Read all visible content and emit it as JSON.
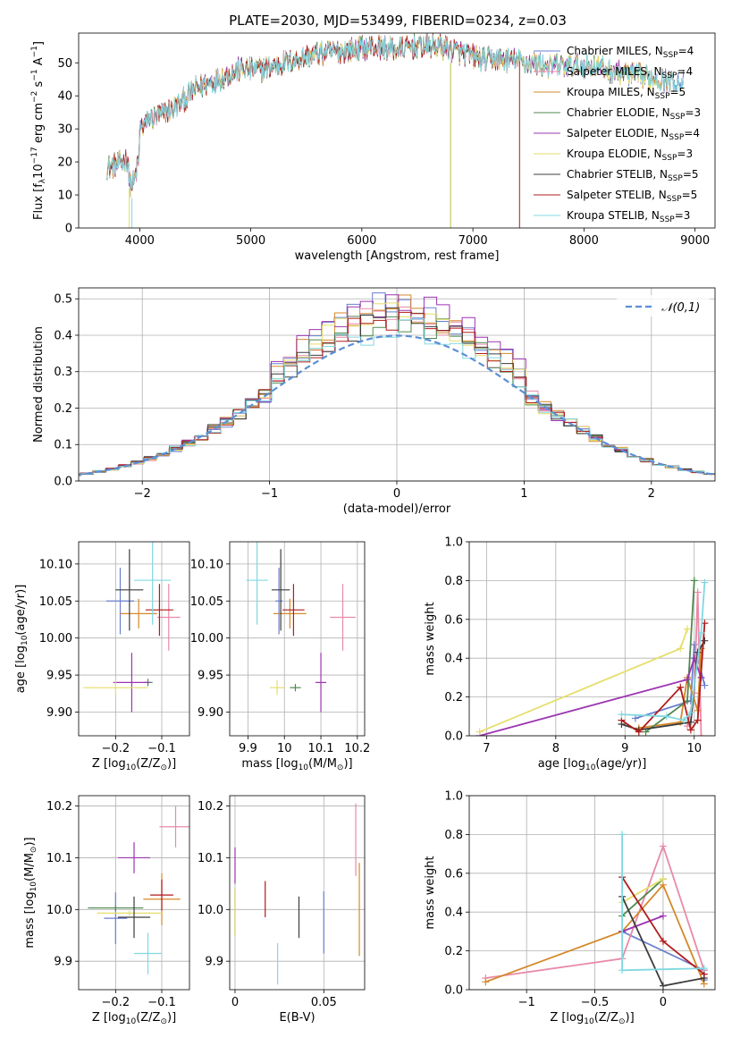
{
  "figure_title": "PLATE=2030, MJD=53499, FIBERID=0234, z=0.03",
  "palette": [
    "#6a7fd0",
    "#e88aa8",
    "#d4892a",
    "#4f8a4f",
    "#9b35b0",
    "#e5de6a",
    "#3c3c3c",
    "#b11b1b",
    "#80d8e0"
  ],
  "chart_data": [
    {
      "id": "spectrum",
      "type": "line",
      "title": "PLATE=2030, MJD=53499, FIBERID=0234, z=0.03",
      "xlabel": "wavelength [Angstrom, rest frame]",
      "ylabel_parts": [
        "Flux [f",
        "λ",
        "10",
        "−17",
        " erg cm",
        "−2",
        " s",
        "−1",
        " A",
        "−1",
        "]"
      ],
      "xlim": [
        3450,
        9180
      ],
      "ylim": [
        0,
        59
      ],
      "xticks": [
        4000,
        5000,
        6000,
        7000,
        8000,
        9000
      ],
      "yticks": [
        0,
        10,
        20,
        30,
        40,
        50
      ],
      "legend_position": "upper right",
      "legend": [
        {
          "base": "Chabrier MILES, N",
          "sub": "SSP",
          "tail": "=4"
        },
        {
          "base": "Salpeter MILES, N",
          "sub": "SSP",
          "tail": "=4"
        },
        {
          "base": "Kroupa MILES, N",
          "sub": "SSP",
          "tail": "=5"
        },
        {
          "base": "Chabrier ELODIE, N",
          "sub": "SSP",
          "tail": "=3"
        },
        {
          "base": "Salpeter ELODIE, N",
          "sub": "SSP",
          "tail": "=4"
        },
        {
          "base": "Kroupa ELODIE, N",
          "sub": "SSP",
          "tail": "=3"
        },
        {
          "base": "Chabrier STELIB, N",
          "sub": "SSP",
          "tail": "=5"
        },
        {
          "base": "Salpeter STELIB, N",
          "sub": "SSP",
          "tail": "=5"
        },
        {
          "base": "Kroupa STELIB, N",
          "sub": "SSP",
          "tail": "=3"
        }
      ],
      "continuum_x": [
        3700,
        3850,
        3950,
        4000,
        4100,
        4300,
        4500,
        4700,
        4900,
        5100,
        5300,
        5500,
        5700,
        5900,
        6100,
        6300,
        6500,
        6700,
        6900,
        7100,
        7300,
        7500,
        7700,
        7900,
        8100,
        8300,
        8500,
        8700,
        8900
      ],
      "continuum_y": [
        18,
        20,
        22,
        30,
        33,
        36,
        42,
        45,
        48,
        48,
        50,
        52,
        53,
        54,
        55,
        54,
        55,
        55,
        53,
        51,
        51,
        50,
        49,
        49,
        49,
        47,
        46,
        45,
        44
      ],
      "series_ranges": [
        [
          3700,
          8900
        ],
        [
          3700,
          8800
        ],
        [
          3700,
          8800
        ],
        [
          3700,
          8600
        ],
        [
          3700,
          8600
        ],
        [
          3700,
          8700
        ],
        [
          3700,
          8900
        ],
        [
          3700,
          7420
        ],
        [
          3700,
          8900
        ]
      ],
      "dropouts": [
        {
          "series": 5,
          "x": 3905,
          "top": 12
        },
        {
          "series": 8,
          "x": 3930,
          "top": 9
        },
        {
          "series": 3,
          "x": 6800,
          "top": 50
        },
        {
          "series": 5,
          "x": 6800,
          "top": 50
        }
      ],
      "spikes": [
        {
          "series": 6,
          "x": 6580,
          "top": 59
        }
      ]
    },
    {
      "id": "residuals",
      "type": "histogram",
      "xlabel": "(data-model)/error",
      "ylabel": "Normed distribution",
      "xlim": [
        -2.5,
        2.5
      ],
      "ylim": [
        0,
        0.53
      ],
      "xticks": [
        -2,
        -1,
        0,
        1,
        2
      ],
      "yticks": [
        0.0,
        0.1,
        0.2,
        0.3,
        0.4,
        0.5
      ],
      "bin_width": 0.1,
      "legend_label": "𝒩(0,1)",
      "legend_position": "upper right",
      "peak_heights": [
        0.48,
        0.45,
        0.47,
        0.44,
        0.49,
        0.46,
        0.44,
        0.45,
        0.42
      ]
    },
    {
      "id": "age_vs_Z",
      "type": "errorbar",
      "xlabel_parts": [
        "Z [log",
        "10",
        "(Z/Z",
        "⊙",
        ")]"
      ],
      "ylabel_parts": [
        "age  [log",
        "10",
        "(age/yr)]"
      ],
      "xlim": [
        -0.28,
        -0.04
      ],
      "ylim": [
        9.868,
        10.13
      ],
      "xticks": [
        -0.2,
        -0.1
      ],
      "yticks": [
        9.9,
        9.95,
        10.0,
        10.05,
        10.1
      ],
      "points": [
        {
          "x": -0.19,
          "y": 10.05,
          "xerr": 0.03,
          "yerr": 0.045
        },
        {
          "x": -0.085,
          "y": 10.028,
          "xerr": 0.025,
          "yerr": 0.045
        },
        {
          "x": -0.15,
          "y": 10.033,
          "xerr": 0.04,
          "yerr": 0.02
        },
        {
          "x": -0.13,
          "y": 9.94,
          "xerr": 0.01,
          "yerr": 0.005
        },
        {
          "x": -0.165,
          "y": 9.94,
          "xerr": 0.04,
          "yerr": 0.04
        },
        {
          "x": -0.2,
          "y": 9.933,
          "xerr": 0.07,
          "yerr": 0.01
        },
        {
          "x": -0.17,
          "y": 10.065,
          "xerr": 0.03,
          "yerr": 0.055
        },
        {
          "x": -0.105,
          "y": 10.038,
          "xerr": 0.03,
          "yerr": 0.035
        },
        {
          "x": -0.12,
          "y": 10.078,
          "xerr": 0.04,
          "yerr": 0.06
        }
      ]
    },
    {
      "id": "age_vs_mass",
      "type": "errorbar",
      "xlabel_parts": [
        "mass [log",
        "10",
        "(M/M",
        "⊙",
        ")]"
      ],
      "ylabel": "",
      "xlim": [
        9.85,
        10.22
      ],
      "ylim": [
        9.868,
        10.13
      ],
      "xticks": [
        9.9,
        10.0,
        10.1,
        10.2
      ],
      "yticks": [
        9.9,
        9.95,
        10.0,
        10.05,
        10.1
      ],
      "points": [
        {
          "x": 9.985,
          "y": 10.05,
          "xerr": 0.01,
          "yerr": 0.045
        },
        {
          "x": 10.16,
          "y": 10.028,
          "xerr": 0.035,
          "yerr": 0.045
        },
        {
          "x": 10.015,
          "y": 10.033,
          "xerr": 0.045,
          "yerr": 0.02
        },
        {
          "x": 10.03,
          "y": 9.933,
          "xerr": 0.015,
          "yerr": 0.005
        },
        {
          "x": 10.1,
          "y": 9.94,
          "xerr": 0.015,
          "yerr": 0.04
        },
        {
          "x": 9.98,
          "y": 9.933,
          "xerr": 0.02,
          "yerr": 0.01
        },
        {
          "x": 9.99,
          "y": 10.065,
          "xerr": 0.025,
          "yerr": 0.055
        },
        {
          "x": 10.025,
          "y": 10.038,
          "xerr": 0.03,
          "yerr": 0.035
        },
        {
          "x": 9.925,
          "y": 10.078,
          "xerr": 0.03,
          "yerr": 0.06
        }
      ]
    },
    {
      "id": "mass_weight_vs_age",
      "type": "line",
      "xlabel_parts": [
        "age  [log",
        "10",
        "(age/yr)]"
      ],
      "ylabel": "mass weight",
      "xlim": [
        6.75,
        10.3
      ],
      "ylim": [
        0,
        1.0
      ],
      "xticks": [
        7,
        8,
        9,
        10
      ],
      "yticks": [
        0.0,
        0.2,
        0.4,
        0.6,
        0.8,
        1.0
      ],
      "series": [
        {
          "x": [
            9.15,
            9.95,
            10.0,
            10.15
          ],
          "y": [
            0.09,
            0.18,
            0.47,
            0.26
          ]
        },
        {
          "x": [
            9.9,
            10.0,
            10.05,
            10.1
          ],
          "y": [
            0.05,
            0.22,
            0.74,
            0.0
          ]
        },
        {
          "x": [
            9.2,
            9.8,
            9.9,
            10.05,
            10.1
          ],
          "y": [
            0.04,
            0.07,
            0.3,
            0.13,
            0.45
          ]
        },
        {
          "x": [
            9.3,
            9.9,
            10.0
          ],
          "y": [
            0.02,
            0.18,
            0.8
          ]
        },
        {
          "x": [
            6.9,
            9.9,
            10.0,
            10.1
          ],
          "y": [
            0.0,
            0.29,
            0.4,
            0.3
          ]
        },
        {
          "x": [
            6.9,
            9.8,
            9.9
          ],
          "y": [
            0.02,
            0.45,
            0.55
          ]
        },
        {
          "x": [
            8.95,
            9.2,
            9.95,
            10.05,
            10.15
          ],
          "y": [
            0.06,
            0.03,
            0.07,
            0.43,
            0.49
          ]
        },
        {
          "x": [
            8.95,
            9.2,
            9.8,
            9.95,
            10.05,
            10.15
          ],
          "y": [
            0.08,
            0.02,
            0.25,
            0.03,
            0.08,
            0.58
          ]
        },
        {
          "x": [
            8.95,
            9.6,
            9.85,
            9.95,
            10.1,
            10.15
          ],
          "y": [
            0.11,
            0.1,
            0.08,
            0.12,
            0.53,
            0.79
          ]
        }
      ]
    },
    {
      "id": "mass_vs_Z",
      "type": "errorbar",
      "xlabel_parts": [
        "Z [log",
        "10",
        "(Z/Z",
        "⊙",
        ")]"
      ],
      "ylabel_parts": [
        "mass [log",
        "10",
        "(M/M",
        "⊙",
        ")]"
      ],
      "xlim": [
        -0.28,
        -0.04
      ],
      "ylim": [
        9.845,
        10.22
      ],
      "xticks": [
        -0.2,
        -0.1
      ],
      "yticks": [
        9.9,
        10.0,
        10.1,
        10.2
      ],
      "points": [
        {
          "x": -0.2,
          "y": 9.983,
          "xerr": 0.025,
          "yerr": 0.05
        },
        {
          "x": -0.07,
          "y": 10.16,
          "xerr": 0.035,
          "yerr": 0.04
        },
        {
          "x": -0.1,
          "y": 10.02,
          "xerr": 0.04,
          "yerr": 0.05
        },
        {
          "x": -0.2,
          "y": 10.003,
          "xerr": 0.06,
          "yerr": 0.005
        },
        {
          "x": -0.16,
          "y": 10.1,
          "xerr": 0.035,
          "yerr": 0.03
        },
        {
          "x": -0.17,
          "y": 9.993,
          "xerr": 0.07,
          "yerr": 0.005
        },
        {
          "x": -0.16,
          "y": 9.985,
          "xerr": 0.035,
          "yerr": 0.04
        },
        {
          "x": -0.1,
          "y": 10.028,
          "xerr": 0.025,
          "yerr": 0.03
        },
        {
          "x": -0.13,
          "y": 9.915,
          "xerr": 0.03,
          "yerr": 0.04
        }
      ]
    },
    {
      "id": "mass_vs_EBV",
      "type": "errorbar",
      "xlabel": "E(B-V)",
      "ylabel": "",
      "xlim": [
        -0.003,
        0.073
      ],
      "ylim": [
        9.845,
        10.22
      ],
      "xticks": [
        0.0,
        0.05
      ],
      "yticks": [
        9.9,
        10.0,
        10.1,
        10.2
      ],
      "points": [
        {
          "x": 0.05,
          "y": 9.975,
          "xerr": 0,
          "yerr": 0.06
        },
        {
          "x": 0.068,
          "y": 10.135,
          "xerr": 0,
          "yerr": 0.07
        },
        {
          "x": 0.07,
          "y": 10.0,
          "xerr": 0,
          "yerr": 0.09
        },
        {
          "x": 0.0,
          "y": 9.995,
          "xerr": 0,
          "yerr": 0.045
        },
        {
          "x": 0.0,
          "y": 10.085,
          "xerr": 0,
          "yerr": 0.035
        },
        {
          "x": 0.0,
          "y": 9.995,
          "xerr": 0,
          "yerr": 0.045
        },
        {
          "x": 0.036,
          "y": 9.985,
          "xerr": 0,
          "yerr": 0.04
        },
        {
          "x": 0.017,
          "y": 10.02,
          "xerr": 0,
          "yerr": 0.035
        },
        {
          "x": 0.024,
          "y": 9.895,
          "xerr": 0,
          "yerr": 0.04
        }
      ]
    },
    {
      "id": "mass_weight_vs_Z",
      "type": "line",
      "xlabel_parts": [
        "Z [log",
        "10",
        "(Z/Z",
        "⊙",
        ")]"
      ],
      "ylabel": "mass weight",
      "xlim": [
        -1.42,
        0.38
      ],
      "ylim": [
        0,
        1.0
      ],
      "xticks": [
        -1.0,
        -0.5,
        0.0
      ],
      "yticks": [
        0.0,
        0.2,
        0.4,
        0.6,
        0.8,
        1.0
      ],
      "series": [
        {
          "x": [
            -0.3,
            0.3,
            0.3
          ],
          "y": [
            0.3,
            0.1,
            0.05
          ]
        },
        {
          "x": [
            -1.3,
            -0.3,
            0.0,
            0.3
          ],
          "y": [
            0.06,
            0.16,
            0.74,
            0.1
          ]
        },
        {
          "x": [
            -1.3,
            -0.3,
            0.0,
            0.3
          ],
          "y": [
            0.04,
            0.3,
            0.54,
            0.03
          ]
        },
        {
          "x": [
            -0.3,
            0.0
          ],
          "y": [
            0.38,
            0.57
          ]
        },
        {
          "x": [
            -0.3,
            0.0
          ],
          "y": [
            0.3,
            0.38
          ]
        },
        {
          "x": [
            -0.3,
            0.0
          ],
          "y": [
            0.45,
            0.57
          ]
        },
        {
          "x": [
            -0.3,
            0.0,
            0.3
          ],
          "y": [
            0.48,
            0.02,
            0.06
          ]
        },
        {
          "x": [
            -0.3,
            0.0,
            0.3
          ],
          "y": [
            0.58,
            0.25,
            0.08
          ]
        },
        {
          "x": [
            -0.3,
            -0.3,
            0.3
          ],
          "y": [
            0.8,
            0.1,
            0.11
          ]
        }
      ]
    }
  ]
}
